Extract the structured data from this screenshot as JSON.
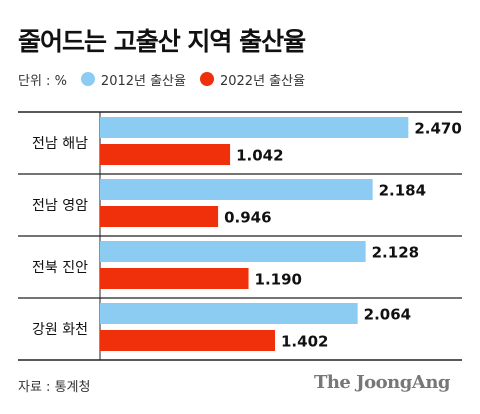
{
  "chart_data": {
    "type": "bar",
    "orientation": "horizontal",
    "title": "줄어드는 고출산 지역 출산율",
    "unit": "단위 : %",
    "categories": [
      "전남 해남",
      "전남 영암",
      "전북 진안",
      "강원 화천"
    ],
    "series": [
      {
        "name": "2012년 출산율",
        "color": "#8CCBF2",
        "values": [
          2.47,
          2.184,
          2.128,
          2.064
        ],
        "labels": [
          "2.470",
          "2.184",
          "2.128",
          "2.064"
        ]
      },
      {
        "name": "2022년 출산율",
        "color": "#F0300A",
        "values": [
          1.042,
          0.946,
          1.19,
          1.402
        ],
        "labels": [
          "1.042",
          "0.946",
          "1.190",
          "1.402"
        ]
      }
    ],
    "xlim": [
      0,
      2.8
    ],
    "grid": false,
    "legend_position": "top-left"
  },
  "source": "자료 : 통계청",
  "brand": "The JoongAng"
}
